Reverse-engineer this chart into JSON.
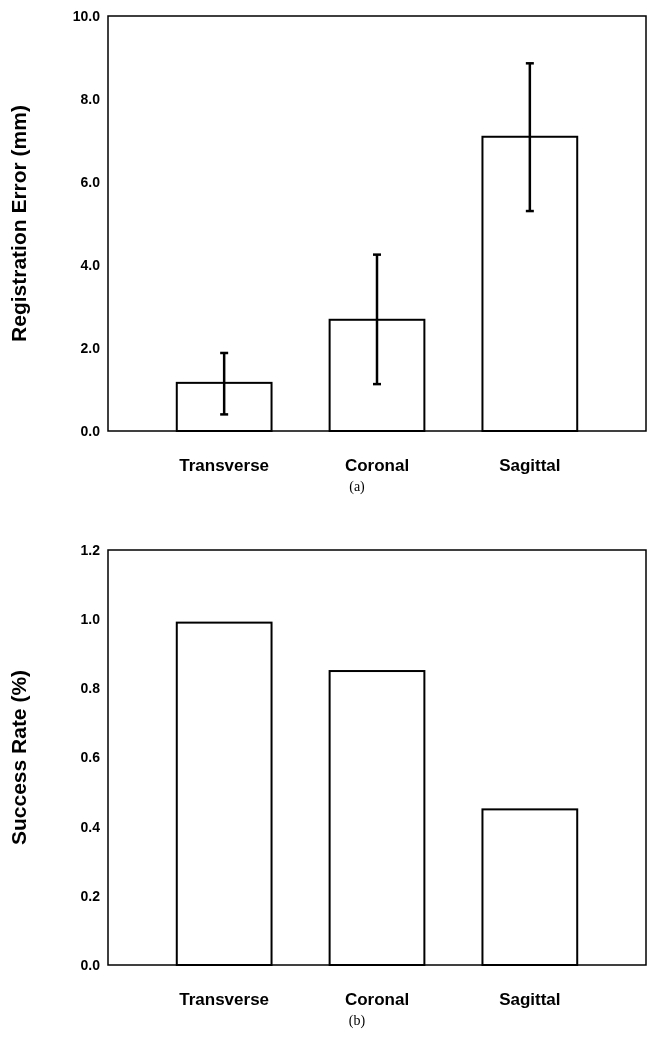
{
  "chart_data": [
    {
      "type": "bar",
      "ylabel": "Registration Error (mm)",
      "categories": [
        "Transverse",
        "Coronal",
        "Sagittal"
      ],
      "values": [
        1.16,
        2.68,
        7.09
      ],
      "errors": [
        [
          0.4,
          1.88
        ],
        [
          1.13,
          4.25
        ],
        [
          5.3,
          8.86
        ]
      ],
      "color": "#ffffff",
      "ylim": [
        0,
        10
      ],
      "yticks": [
        {
          "value": 0,
          "label": "0.0"
        },
        {
          "value": 2,
          "label": "2.0"
        },
        {
          "value": 4,
          "label": "4.0"
        },
        {
          "value": 6,
          "label": "6.0"
        },
        {
          "value": 8,
          "label": "8.0"
        },
        {
          "value": 10,
          "label": "10.0"
        }
      ],
      "grid": false,
      "annotations": [
        "(a)"
      ]
    },
    {
      "type": "bar",
      "ylabel": "Success Rate (%)",
      "categories": [
        "Transverse",
        "Coronal",
        "Sagittal"
      ],
      "values": [
        0.99,
        0.85,
        0.45
      ],
      "color": "#ffffff",
      "ylim": [
        0,
        1.2
      ],
      "yticks": [
        {
          "value": 0,
          "label": "0.0"
        },
        {
          "value": 0.2,
          "label": "0.2"
        },
        {
          "value": 0.4,
          "label": "0.4"
        },
        {
          "value": 0.6,
          "label": "0.6"
        },
        {
          "value": 0.8,
          "label": "0.8"
        },
        {
          "value": 1,
          "label": "1.0"
        },
        {
          "value": 1.2,
          "label": "1.2"
        }
      ],
      "grid": false,
      "annotations": [
        "(b)"
      ]
    }
  ]
}
